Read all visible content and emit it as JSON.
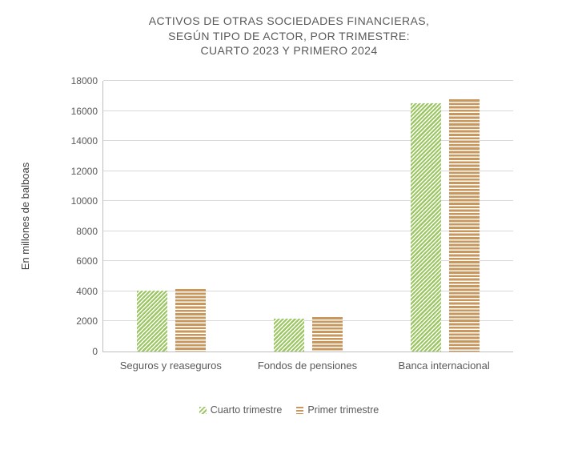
{
  "title_lines": [
    "ACTIVOS DE OTRAS SOCIEDADES FINANCIERAS,",
    "SEGÚN TIPO DE ACTOR, POR TRIMESTRE:",
    "CUARTO 2023 Y PRIMERO 2024"
  ],
  "chart_data": {
    "type": "bar",
    "title": "ACTIVOS DE OTRAS SOCIEDADES FINANCIERAS, SEGÚN TIPO DE ACTOR, POR TRIMESTRE: CUARTO 2023 Y PRIMERO 2024",
    "categories": [
      "Seguros y reaseguros",
      "Fondos de pensiones",
      "Banca internacional"
    ],
    "series": [
      {
        "name": "Cuarto trimestre",
        "values": [
          4050,
          2200,
          16500
        ],
        "pattern": "diagonal",
        "color": "#9cc863"
      },
      {
        "name": "Primer trimestre",
        "values": [
          4150,
          2290,
          16800
        ],
        "pattern": "horizontal",
        "color": "#c9965c"
      }
    ],
    "xlabel": "",
    "ylabel": "En millones de balboas",
    "ylim": [
      0,
      18000
    ],
    "ytick_step": 2000,
    "grid": true,
    "legend_position": "bottom"
  },
  "colors": {
    "series1": "#9cc863",
    "series2": "#c9965c",
    "text": "#595959",
    "gridline": "#d9d9d9",
    "axis": "#bfbfbf",
    "background": "#ffffff"
  }
}
